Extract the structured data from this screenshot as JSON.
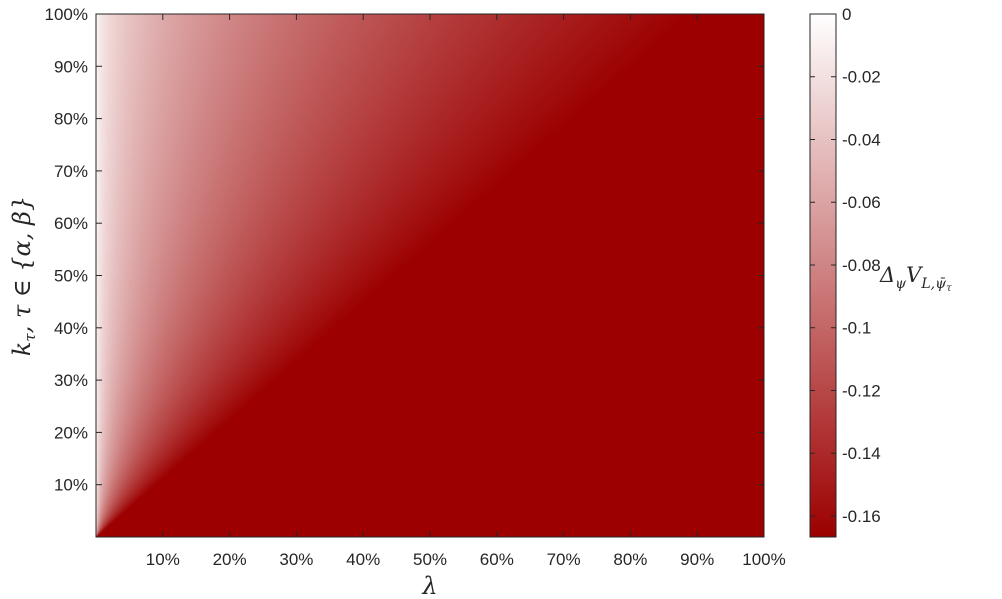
{
  "colors": {
    "low": "#9c0000",
    "high": "#ffffff",
    "axis": "#262626"
  },
  "chart_data": {
    "type": "heatmap",
    "title": "",
    "xlabel": "λ",
    "ylabel": "k_τ, τ ∈ {α, β}",
    "colorbar_label": "Δ_ψ V_{L,ψ̄_τ}",
    "xlim": [
      0,
      100
    ],
    "ylim": [
      0,
      100
    ],
    "x_ticks": [
      "10%",
      "20%",
      "30%",
      "40%",
      "50%",
      "60%",
      "70%",
      "80%",
      "90%",
      "100%"
    ],
    "y_ticks": [
      "10%",
      "20%",
      "30%",
      "40%",
      "50%",
      "60%",
      "70%",
      "80%",
      "90%",
      "100%"
    ],
    "colorbar": {
      "clim": [
        -0.1667,
        0
      ],
      "ticks": [
        "0",
        "-0.02",
        "-0.04",
        "-0.06",
        "-0.08",
        "-0.1",
        "-0.12",
        "-0.14",
        "-0.16"
      ]
    },
    "colormap": "white-to-dark-red",
    "value_profile": {
      "description_of_shape": "value depends on lambda/k; near 0 when lambda is small relative to k, saturates at minimum otherwise",
      "min_value": -0.1667,
      "max_value": 0,
      "saturation_ratio": 0.9
    }
  },
  "labels": {
    "x": "λ",
    "y_var": "k",
    "y_sub": "τ",
    "y_rest": ", τ ∈ {α, β}",
    "cb_delta": "Δ",
    "cb_psi": "ψ",
    "cb_V": "V",
    "cb_sub": "L,",
    "cb_psibar": "ψ̄",
    "cb_tau": "τ"
  }
}
